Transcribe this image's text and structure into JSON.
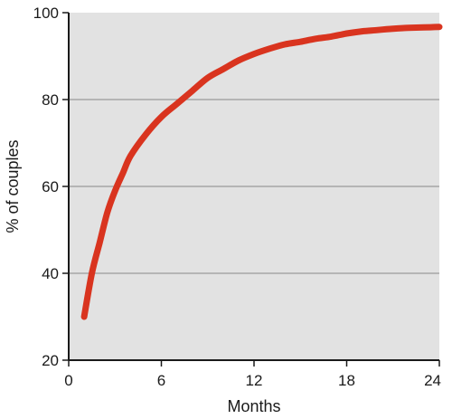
{
  "chart_data": {
    "type": "line",
    "title": "",
    "xlabel": "Months",
    "ylabel": "% of couples",
    "xlim": [
      0,
      24
    ],
    "ylim": [
      20,
      100
    ],
    "x_ticks": [
      0,
      6,
      12,
      18,
      24
    ],
    "y_ticks": [
      20,
      40,
      60,
      80,
      100
    ],
    "grid": "horizontal",
    "colors": {
      "plot_background": "#e2e2e2",
      "line": "#d9341f",
      "gridline": "#9a9a9a",
      "axis": "#1a1a1a"
    },
    "series": [
      {
        "x": [
          1,
          1.5,
          2,
          2.5,
          3,
          3.5,
          4,
          5,
          6,
          7,
          8,
          9,
          10,
          11,
          12,
          13,
          14,
          15,
          16,
          17,
          18,
          19,
          20,
          21,
          22,
          23,
          24
        ],
        "values": [
          30,
          40,
          47,
          54,
          59,
          63,
          67,
          72,
          76,
          79,
          82,
          85,
          87,
          89,
          90.5,
          91.7,
          92.7,
          93.3,
          94,
          94.5,
          95.2,
          95.7,
          96,
          96.3,
          96.5,
          96.6,
          96.7
        ]
      }
    ]
  }
}
